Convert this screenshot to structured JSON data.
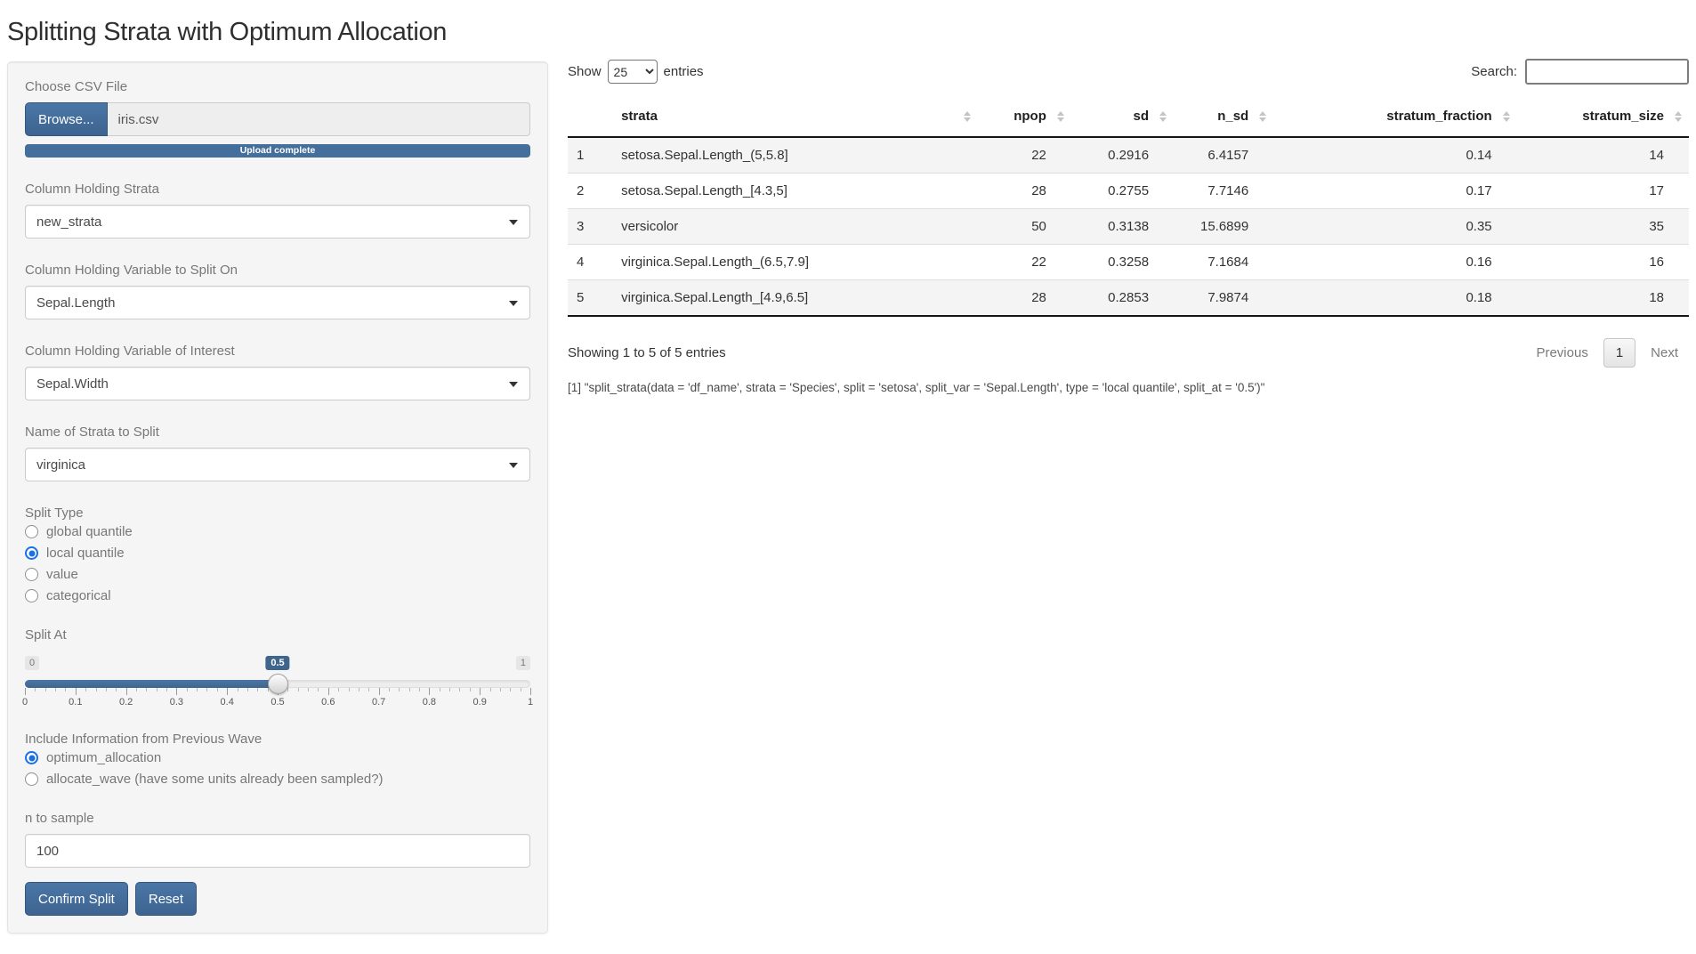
{
  "title": "Splitting Strata with Optimum Allocation",
  "colors": {
    "primary": "#446e9b",
    "radio_accent": "#1a6fe8",
    "stripe": "#f4f4f4"
  },
  "sidebar": {
    "file_input": {
      "label": "Choose CSV File",
      "browse_label": "Browse...",
      "filename": "iris.csv",
      "progress_text": "Upload complete"
    },
    "selects": [
      {
        "label": "Column Holding Strata",
        "value": "new_strata"
      },
      {
        "label": "Column Holding Variable to Split On",
        "value": "Sepal.Length"
      },
      {
        "label": "Column Holding Variable of Interest",
        "value": "Sepal.Width"
      },
      {
        "label": "Name of Strata to Split",
        "value": "virginica"
      }
    ],
    "split_type": {
      "label": "Split Type",
      "options": [
        "global quantile",
        "local quantile",
        "value",
        "categorical"
      ],
      "selected": "local quantile"
    },
    "slider": {
      "label": "Split At",
      "min_label": "0",
      "max_label": "1",
      "value_label": "0.5",
      "value_percent": 50,
      "ticks": [
        "0",
        "0.1",
        "0.2",
        "0.3",
        "0.4",
        "0.5",
        "0.6",
        "0.7",
        "0.8",
        "0.9",
        "1"
      ]
    },
    "wave": {
      "label": "Include Information from Previous Wave",
      "options": [
        "optimum_allocation",
        "allocate_wave (have some units already been sampled?)"
      ],
      "selected": "optimum_allocation"
    },
    "n_to_sample": {
      "label": "n to sample",
      "value": "100"
    },
    "buttons": {
      "confirm": "Confirm Split",
      "reset": "Reset"
    }
  },
  "main": {
    "show_label": "Show",
    "page_length": "25",
    "entries_label": "entries",
    "search_label": "Search:",
    "search_value": "",
    "table": {
      "columns": [
        "",
        "strata",
        "npop",
        "sd",
        "n_sd",
        "stratum_fraction",
        "stratum_size"
      ],
      "rows": [
        [
          "1",
          "setosa.Sepal.Length_(5,5.8]",
          "22",
          "0.2916",
          "6.4157",
          "0.14",
          "14"
        ],
        [
          "2",
          "setosa.Sepal.Length_[4.3,5]",
          "28",
          "0.2755",
          "7.7146",
          "0.17",
          "17"
        ],
        [
          "3",
          "versicolor",
          "50",
          "0.3138",
          "15.6899",
          "0.35",
          "35"
        ],
        [
          "4",
          "virginica.Sepal.Length_(6.5,7.9]",
          "22",
          "0.3258",
          "7.1684",
          "0.16",
          "16"
        ],
        [
          "5",
          "virginica.Sepal.Length_[4.9,6.5]",
          "28",
          "0.2853",
          "7.9874",
          "0.18",
          "18"
        ]
      ]
    },
    "info": "Showing 1 to 5 of 5 entries",
    "pagination": {
      "previous": "Previous",
      "current": "1",
      "next": "Next"
    },
    "console_output": "[1] \"split_strata(data = 'df_name', strata = 'Species', split = 'setosa', split_var = 'Sepal.Length', type = 'local quantile', split_at = '0.5')\""
  }
}
